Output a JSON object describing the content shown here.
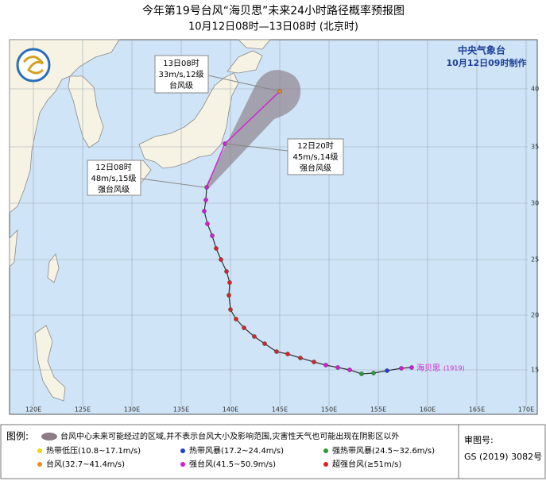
{
  "header": {
    "title": "今年第19号台风“海贝思”未来24小时路径概率预报图",
    "subtitle": "10月12日08时—13日08时 (北京时)"
  },
  "agency": {
    "name": "中央气象台",
    "issued": "10月12日09时制作"
  },
  "callouts": [
    {
      "time": "13日08时",
      "wind": "33m/s,12级",
      "grade": "台风级"
    },
    {
      "time": "12日20时",
      "wind": "45m/s,14级",
      "grade": "强台风级"
    },
    {
      "time": "12日08时",
      "wind": "48m/s,15级",
      "grade": "强台风级"
    }
  ],
  "storm": {
    "name": "海贝思",
    "code": "(1919)"
  },
  "map": {
    "lon_labels": [
      "120E",
      "125E",
      "130E",
      "135E",
      "140E",
      "145E",
      "150E",
      "155E",
      "160E",
      "165E",
      "170E"
    ],
    "lat_labels": [
      "40",
      "35",
      "30",
      "25",
      "20",
      "15"
    ]
  },
  "legend": {
    "heading": "图例:",
    "cone_text": "台风中心未来可能经过的区域,并不表示台风大小及影响范围,灾害性天气也可能出现在阴影区以外",
    "items": [
      {
        "label": "热带低压(10.8~17.1m/s)",
        "color": "#f2d600"
      },
      {
        "label": "热带风暴(17.2~24.4m/s)",
        "color": "#1f3fd8"
      },
      {
        "label": "强热带风暴(24.5~32.6m/s)",
        "color": "#2a9a3a"
      },
      {
        "label": "台风(32.7~41.4m/s)",
        "color": "#f08a1c"
      },
      {
        "label": "强台风(41.5~50.9m/s)",
        "color": "#d21fd2"
      },
      {
        "label": "超强台风(≥51m/s)",
        "color": "#d8242a"
      }
    ]
  },
  "approval": {
    "label": "审图号:",
    "number": "GS (2019) 3082号"
  }
}
